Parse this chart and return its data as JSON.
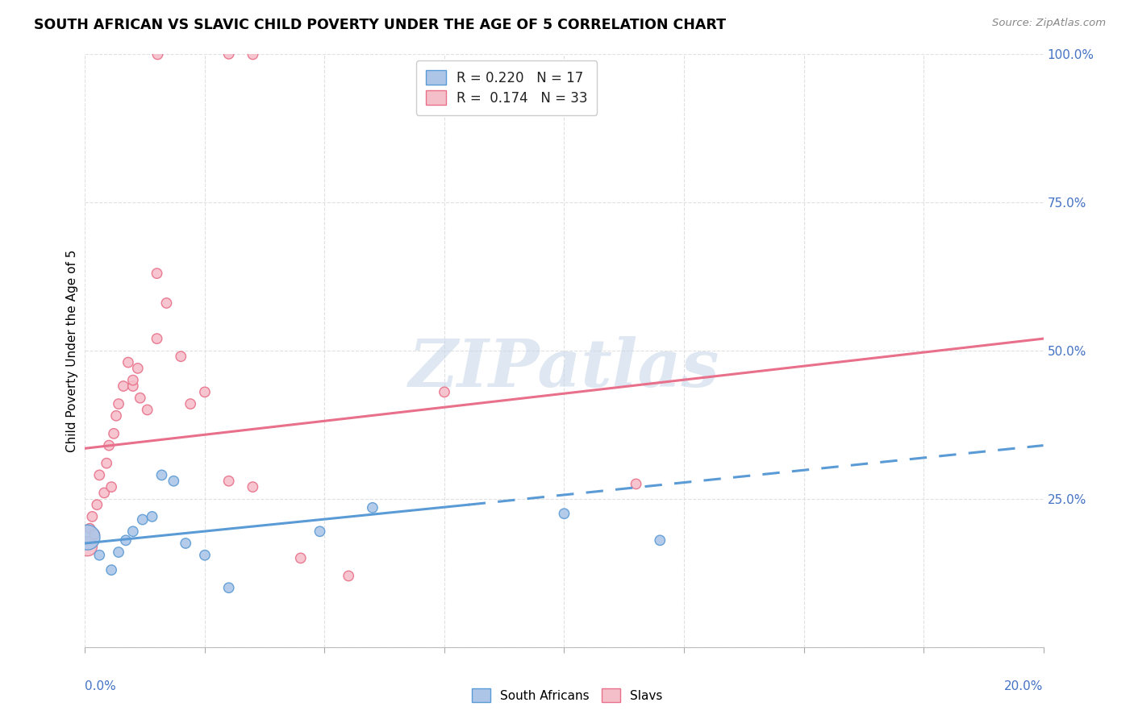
{
  "title": "SOUTH AFRICAN VS SLAVIC CHILD POVERTY UNDER THE AGE OF 5 CORRELATION CHART",
  "source": "Source: ZipAtlas.com",
  "ylabel": "Child Poverty Under the Age of 5",
  "xlim": [
    0.0,
    20.0
  ],
  "ylim": [
    0.0,
    100.0
  ],
  "yticks_right_vals": [
    25.0,
    50.0,
    75.0,
    100.0
  ],
  "background_color": "#ffffff",
  "blue_color": "#5b9bd5",
  "pink_color": "#e8708a",
  "blue_fill": "#adc6e8",
  "pink_fill": "#f5bfca",
  "right_axis_color": "#4472c4",
  "legend_line1": "R = 0.220   N = 17",
  "legend_line2": "R =  0.174   N = 33",
  "south_african_x": [
    0.05,
    0.3,
    0.55,
    0.7,
    0.85,
    1.0,
    1.2,
    1.4,
    1.6,
    1.85,
    2.1,
    2.5,
    3.0,
    4.9,
    6.0,
    10.0,
    12.0
  ],
  "south_african_y": [
    18.5,
    15.5,
    13.0,
    16.0,
    18.0,
    19.5,
    21.5,
    22.0,
    29.0,
    28.0,
    17.5,
    15.5,
    10.0,
    19.5,
    23.5,
    22.5,
    18.0
  ],
  "south_african_sizes": [
    500,
    80,
    80,
    80,
    80,
    80,
    80,
    80,
    80,
    80,
    80,
    80,
    80,
    80,
    80,
    80,
    80
  ],
  "slavic_x": [
    0.05,
    0.1,
    0.15,
    0.2,
    0.25,
    0.3,
    0.4,
    0.45,
    0.5,
    0.55,
    0.6,
    0.65,
    0.7,
    0.8,
    0.9,
    1.0,
    1.1,
    1.15,
    1.3,
    1.5,
    1.7,
    2.0,
    2.2,
    2.5,
    3.0,
    3.5,
    4.5,
    5.5,
    7.5,
    11.5,
    1.5,
    3.0,
    1.0
  ],
  "slavic_y": [
    17.0,
    20.0,
    22.0,
    19.0,
    24.0,
    29.0,
    26.0,
    31.0,
    34.0,
    27.0,
    36.0,
    39.0,
    41.0,
    44.0,
    48.0,
    44.0,
    47.0,
    42.0,
    40.0,
    52.0,
    58.0,
    49.0,
    41.0,
    43.0,
    28.0,
    27.0,
    15.0,
    12.0,
    43.0,
    27.5,
    63.0,
    100.0,
    45.0
  ],
  "slavic_sizes": [
    300,
    80,
    80,
    80,
    80,
    80,
    80,
    80,
    80,
    80,
    80,
    80,
    80,
    80,
    80,
    80,
    80,
    80,
    80,
    80,
    80,
    80,
    80,
    80,
    80,
    80,
    80,
    80,
    80,
    80,
    80,
    80,
    80
  ],
  "sa_solid_x0": 0.0,
  "sa_solid_y0": 17.5,
  "sa_solid_x1": 8.0,
  "sa_solid_y1": 24.0,
  "sa_dash_x0": 8.0,
  "sa_dash_y0": 24.0,
  "sa_dash_x1": 20.0,
  "sa_dash_y1": 34.0,
  "sl_x0": 0.0,
  "sl_y0": 33.5,
  "sl_x1": 20.0,
  "sl_y1": 52.0,
  "pink_dot_top1_x": 1.5,
  "pink_dot_top1_y": 100.0,
  "pink_dot_top2_x": 3.5,
  "pink_dot_top2_y": 100.0,
  "watermark_text": "ZIPatlas",
  "watermark_color": "#c8d8ea",
  "dot_size": 80,
  "dot_lw": 1.0,
  "dot_alpha": 0.9,
  "grid_color": "#e0e0e0",
  "grid_ls": "--"
}
